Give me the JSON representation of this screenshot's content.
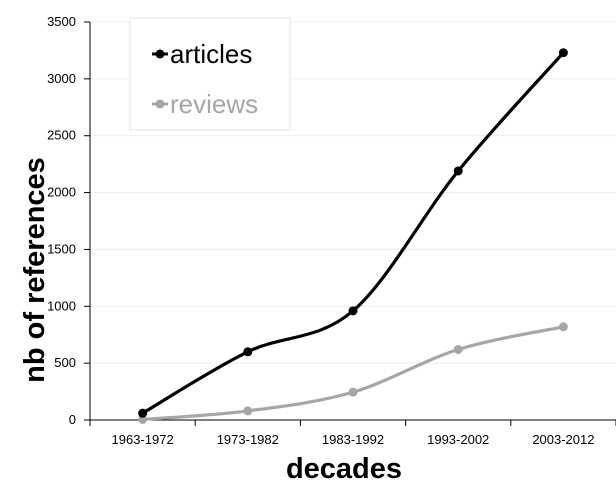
{
  "chart_data": {
    "type": "line",
    "title": "",
    "xlabel": "decades",
    "ylabel": "nb of references",
    "categories": [
      "1963-1972",
      "1973-1982",
      "1983-1992",
      "1993-2002",
      "2003-2012"
    ],
    "ylim": [
      0,
      3500
    ],
    "yticks": [
      0,
      500,
      1000,
      1500,
      2000,
      2500,
      3000,
      3500
    ],
    "grid": true,
    "legend_position": "top-left",
    "series": [
      {
        "name": "articles",
        "values": [
          60,
          600,
          960,
          2190,
          3230
        ],
        "color": "#000000"
      },
      {
        "name": "reviews",
        "values": [
          5,
          80,
          245,
          620,
          820
        ],
        "color": "#a6a6a6"
      }
    ]
  }
}
